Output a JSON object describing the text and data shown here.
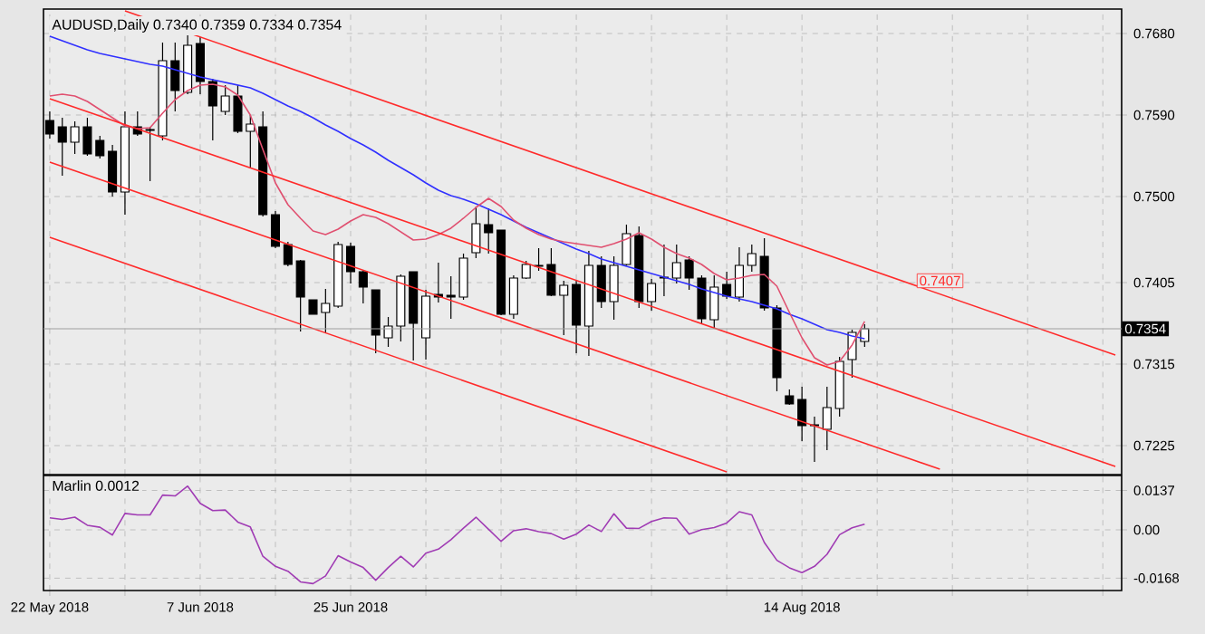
{
  "chart_data": [
    {
      "type": "candlestick",
      "title": "AUDUSD,Daily  0.7340 0.7359 0.7334 0.7354",
      "categories": [
        null,
        null,
        null,
        null,
        null,
        null,
        null,
        null,
        null,
        null,
        null,
        null,
        null,
        null,
        null,
        null,
        null,
        null,
        null,
        null,
        null,
        null,
        null,
        null,
        null,
        null,
        null,
        null,
        null,
        null,
        null,
        null,
        null,
        null,
        null,
        null,
        null,
        null,
        null,
        null,
        null,
        null,
        null,
        null,
        null,
        null,
        null,
        null,
        null,
        null,
        null,
        null,
        null,
        null,
        null,
        null,
        null,
        null,
        null,
        null,
        null,
        null,
        null,
        null,
        null,
        null,
        null,
        null,
        null,
        null,
        null,
        null,
        null,
        null,
        null,
        null,
        null,
        null,
        null,
        null,
        null,
        null,
        null,
        null,
        null,
        null
      ],
      "ohlc": [
        [
          0.7584,
          0.7594,
          0.7564,
          0.7569
        ],
        [
          0.7577,
          0.7587,
          0.7523,
          0.756
        ],
        [
          0.756,
          0.7583,
          0.7547,
          0.7577
        ],
        [
          0.7577,
          0.7587,
          0.7545,
          0.7547
        ],
        [
          0.7562,
          0.7567,
          0.7542,
          0.7545
        ],
        [
          0.755,
          0.7557,
          0.75,
          0.7505
        ],
        [
          0.7505,
          0.7594,
          0.748,
          0.7577
        ],
        [
          0.7577,
          0.7594,
          0.7567,
          0.7569
        ],
        [
          0.7573,
          0.7577,
          0.7517,
          0.7574
        ],
        [
          0.7567,
          0.767,
          0.7562,
          0.765
        ],
        [
          0.765,
          0.767,
          0.7594,
          0.7617
        ],
        [
          0.7615,
          0.768,
          0.7613,
          0.7667
        ],
        [
          0.7669,
          0.7676,
          0.7613,
          0.7627
        ],
        [
          0.7627,
          0.763,
          0.7562,
          0.76
        ],
        [
          0.7594,
          0.7623,
          0.759,
          0.7611
        ],
        [
          0.7611,
          0.7623,
          0.757,
          0.7572
        ],
        [
          0.7572,
          0.759,
          0.7532,
          0.758
        ],
        [
          0.7577,
          0.7594,
          0.7478,
          0.748
        ],
        [
          0.748,
          0.7484,
          0.7443,
          0.7445
        ],
        [
          0.7447,
          0.745,
          0.7423,
          0.7425
        ],
        [
          0.7429,
          0.743,
          0.7351,
          0.7389
        ],
        [
          0.7386,
          0.7386,
          0.737,
          0.737
        ],
        [
          0.7372,
          0.7398,
          0.735,
          0.7382
        ],
        [
          0.7379,
          0.745,
          0.7377,
          0.7447
        ],
        [
          0.7445,
          0.7449,
          0.7404,
          0.7417
        ],
        [
          0.7417,
          0.7418,
          0.7382,
          0.74
        ],
        [
          0.7397,
          0.7397,
          0.7327,
          0.7347
        ],
        [
          0.7344,
          0.7367,
          0.7334,
          0.7357
        ],
        [
          0.7357,
          0.7414,
          0.734,
          0.7412
        ],
        [
          0.7417,
          0.7417,
          0.7319,
          0.736
        ],
        [
          0.7344,
          0.7397,
          0.732,
          0.739
        ],
        [
          0.7392,
          0.7427,
          0.7383,
          0.7389
        ],
        [
          0.7391,
          0.7412,
          0.7365,
          0.7389
        ],
        [
          0.7389,
          0.7437,
          0.7386,
          0.7432
        ],
        [
          0.7438,
          0.7489,
          0.7432,
          0.747
        ],
        [
          0.7469,
          0.7487,
          0.7437,
          0.746
        ],
        [
          0.7463,
          0.7463,
          0.7369,
          0.737
        ],
        [
          0.737,
          0.7413,
          0.7365,
          0.741
        ],
        [
          0.741,
          0.7429,
          0.7409,
          0.7425
        ],
        [
          0.7424,
          0.7443,
          0.7418,
          0.7423
        ],
        [
          0.7425,
          0.7443,
          0.739,
          0.7391
        ],
        [
          0.7391,
          0.7407,
          0.7347,
          0.7402
        ],
        [
          0.7403,
          0.7407,
          0.7327,
          0.7358
        ],
        [
          0.7357,
          0.744,
          0.7324,
          0.7424
        ],
        [
          0.7424,
          0.7434,
          0.7377,
          0.7384
        ],
        [
          0.7384,
          0.7434,
          0.7364,
          0.7424
        ],
        [
          0.7425,
          0.7469,
          0.7424,
          0.7459
        ],
        [
          0.7457,
          0.7467,
          0.7377,
          0.7384
        ],
        [
          0.7384,
          0.7409,
          0.7374,
          0.7404
        ],
        [
          0.741,
          0.7447,
          0.739,
          0.7411
        ],
        [
          0.741,
          0.7447,
          0.7404,
          0.7427
        ],
        [
          0.743,
          0.7434,
          0.7397,
          0.741
        ],
        [
          0.741,
          0.7413,
          0.736,
          0.7365
        ],
        [
          0.7364,
          0.7413,
          0.7354,
          0.74
        ],
        [
          0.7403,
          0.7417,
          0.7387,
          0.739
        ],
        [
          0.7389,
          0.7444,
          0.7384,
          0.7424
        ],
        [
          0.7424,
          0.7447,
          0.7417,
          0.7437
        ],
        [
          0.7434,
          0.7454,
          0.7374,
          0.7377
        ],
        [
          0.7377,
          0.738,
          0.7285,
          0.73
        ],
        [
          0.728,
          0.7287,
          0.727,
          0.7271
        ],
        [
          0.7276,
          0.729,
          0.723,
          0.7247
        ],
        [
          0.7248,
          0.7257,
          0.7207,
          0.7247
        ],
        [
          0.7243,
          0.729,
          0.722,
          0.7267
        ],
        [
          0.7266,
          0.7323,
          0.7257,
          0.7318
        ],
        [
          0.732,
          0.7353,
          0.73,
          0.735
        ],
        [
          0.734,
          0.7359,
          0.7334,
          0.7354
        ],
        null,
        null,
        null,
        null,
        null,
        null,
        null,
        null,
        null,
        null,
        null,
        null,
        null,
        null,
        null,
        null,
        null,
        null,
        null,
        null
      ],
      "series": [
        {
          "type": "line",
          "color": "#3030ff",
          "values": [
            0.7677,
            0.7672,
            0.7667,
            0.7662,
            0.7658,
            0.7655,
            0.7652,
            0.7649,
            0.7646,
            0.7644,
            0.764,
            0.7636,
            0.7632,
            0.7629,
            0.7626,
            0.7623,
            0.762,
            0.7614,
            0.7607,
            0.76,
            0.7594,
            0.7587,
            0.7579,
            0.7572,
            0.7564,
            0.7557,
            0.7549,
            0.754,
            0.7532,
            0.7524,
            0.7515,
            0.7507,
            0.7501,
            0.7497,
            0.7492,
            0.7486,
            0.748,
            0.7473,
            0.7466,
            0.746,
            0.7454,
            0.7448,
            0.7442,
            0.7437,
            0.7431,
            0.7427,
            0.7423,
            0.7419,
            0.7415,
            0.7411,
            0.7407,
            0.7403,
            0.7398,
            0.7394,
            0.739,
            0.7387,
            0.7384,
            0.738,
            0.7376,
            0.737,
            0.7365,
            0.7359,
            0.7353,
            0.735,
            0.7346,
            0.7343,
            null,
            null,
            null,
            null,
            null,
            null,
            null,
            null,
            null,
            null,
            null,
            null,
            null,
            null,
            null,
            null,
            null,
            null,
            null,
            null
          ]
        },
        {
          "type": "line",
          "color": "#e05070",
          "values": [
            0.7611,
            0.7613,
            0.7611,
            0.7605,
            0.7596,
            0.7587,
            0.7578,
            0.7575,
            0.7576,
            0.7592,
            0.7607,
            0.7617,
            0.7623,
            0.7624,
            0.7621,
            0.7612,
            0.759,
            0.7552,
            0.7515,
            0.7491,
            0.7476,
            0.7462,
            0.7458,
            0.7464,
            0.7473,
            0.748,
            0.7477,
            0.747,
            0.7461,
            0.7452,
            0.7453,
            0.7458,
            0.7465,
            0.7476,
            0.7488,
            0.7498,
            0.7489,
            0.7474,
            0.7465,
            0.7458,
            0.7453,
            0.745,
            0.7448,
            0.7446,
            0.7444,
            0.7448,
            0.7453,
            0.746,
            0.7453,
            0.7444,
            0.7437,
            0.7432,
            0.7425,
            0.7415,
            0.7408,
            0.741,
            0.7413,
            0.7414,
            0.7401,
            0.7372,
            0.7344,
            0.7322,
            0.7314,
            0.7318,
            0.7336,
            0.7362,
            null,
            null,
            null,
            null,
            null,
            null,
            null,
            null,
            null,
            null,
            null,
            null,
            null,
            null,
            null,
            null,
            null,
            null,
            null,
            null
          ]
        },
        {
          "type": "line",
          "color": "#ff2a2a",
          "values": [
            null,
            null,
            null,
            null,
            null,
            null,
            0.7705,
            null,
            null,
            null,
            null,
            null,
            null,
            null,
            null,
            null,
            null,
            null,
            null,
            null,
            null,
            null,
            null,
            null,
            null,
            null,
            null,
            null,
            null,
            null,
            null,
            null,
            null,
            null,
            null,
            null,
            null,
            null,
            null,
            null,
            null,
            null,
            null,
            null,
            null,
            null,
            null,
            null,
            null,
            null,
            null,
            null,
            null,
            null,
            null,
            null,
            null,
            null,
            null,
            null,
            null,
            null,
            null,
            null,
            null,
            null,
            null,
            null,
            null,
            null,
            null,
            null,
            null,
            null,
            null,
            null,
            null,
            null,
            null,
            null,
            null,
            null,
            null,
            null,
            null,
            0.7325
          ]
        },
        {
          "type": "line",
          "color": "#ff2a2a",
          "values": [
            0.7608,
            null,
            null,
            null,
            null,
            null,
            null,
            null,
            null,
            null,
            null,
            null,
            null,
            null,
            null,
            null,
            null,
            null,
            null,
            null,
            null,
            null,
            null,
            null,
            null,
            null,
            null,
            null,
            null,
            null,
            null,
            null,
            null,
            null,
            null,
            null,
            null,
            null,
            null,
            null,
            null,
            null,
            null,
            null,
            null,
            null,
            null,
            null,
            null,
            null,
            null,
            null,
            null,
            null,
            null,
            null,
            null,
            null,
            null,
            null,
            null,
            null,
            null,
            null,
            null,
            null,
            null,
            null,
            null,
            null,
            null,
            null,
            null,
            null,
            null,
            null,
            null,
            null,
            null,
            null,
            null,
            null,
            null,
            null,
            null,
            0.7202
          ]
        },
        {
          "type": "line",
          "color": "#ff2a2a",
          "values": [
            0.7538,
            null,
            null,
            null,
            null,
            null,
            null,
            null,
            null,
            null,
            null,
            null,
            null,
            null,
            null,
            null,
            null,
            null,
            null,
            null,
            null,
            null,
            null,
            null,
            null,
            null,
            null,
            null,
            null,
            null,
            null,
            null,
            null,
            null,
            null,
            null,
            null,
            null,
            null,
            null,
            null,
            null,
            null,
            null,
            null,
            null,
            null,
            null,
            null,
            null,
            null,
            null,
            null,
            null,
            null,
            null,
            null,
            null,
            null,
            null,
            null,
            null,
            null,
            null,
            null,
            null,
            null,
            null,
            null,
            null,
            null,
            0.7199,
            null,
            null,
            null,
            null,
            null,
            null,
            null,
            null,
            null,
            null,
            null,
            null,
            null,
            null
          ]
        },
        {
          "type": "line",
          "color": "#ff2a2a",
          "values": [
            0.7455,
            null,
            null,
            null,
            null,
            null,
            null,
            null,
            null,
            null,
            null,
            null,
            null,
            null,
            null,
            null,
            null,
            null,
            null,
            null,
            null,
            null,
            null,
            null,
            null,
            null,
            null,
            null,
            null,
            null,
            null,
            null,
            null,
            null,
            null,
            null,
            null,
            null,
            null,
            null,
            null,
            null,
            null,
            null,
            null,
            null,
            null,
            null,
            null,
            null,
            null,
            null,
            null,
            null,
            0.7196,
            null,
            null,
            null,
            null,
            null,
            null,
            null,
            null,
            null,
            null,
            null,
            null,
            null,
            null,
            null,
            null,
            null,
            null,
            null,
            null,
            null,
            null,
            null,
            null,
            null,
            null,
            null,
            null,
            null,
            null,
            null
          ]
        }
      ],
      "ylim": [
        0.7193,
        0.7707
      ],
      "yticks": [
        {
          "value": 0.768,
          "label": "0.7680"
        },
        {
          "value": 0.759,
          "label": "0.7590"
        },
        {
          "value": 0.75,
          "label": "0.7500"
        },
        0.7405,
        0.7315,
        0.7225
      ],
      "grid": true,
      "tick_labels": "y",
      "ref_lines": [
        {
          "axis": "y",
          "value": 0.7354,
          "label": "0.7354",
          "color": "#a0a0a0"
        }
      ],
      "annotations": [
        {
          "text": "0.7407",
          "y": 0.7407
        }
      ]
    },
    {
      "type": "line",
      "title": "Marlin 0.0012",
      "categories": [
        "22 May 2018",
        null,
        null,
        null,
        null,
        null,
        null,
        null,
        null,
        null,
        null,
        null,
        "7 Jun 2018",
        null,
        null,
        null,
        null,
        null,
        null,
        null,
        null,
        null,
        null,
        null,
        "25 Jun 2018",
        null,
        null,
        null,
        null,
        null,
        null,
        null,
        null,
        null,
        null,
        null,
        null,
        null,
        null,
        null,
        null,
        null,
        null,
        null,
        null,
        null,
        null,
        null,
        null,
        null,
        null,
        null,
        null,
        null,
        null,
        null,
        null,
        null,
        null,
        null,
        "14 Aug 2018",
        null,
        null,
        null,
        null,
        null,
        null,
        null,
        null,
        null,
        null,
        null,
        null,
        null,
        null,
        null,
        null,
        null,
        null,
        null,
        null,
        null,
        null,
        null,
        null,
        null
      ],
      "series": [
        {
          "color": "#a03cb4",
          "values": [
            0.0042,
            0.0036,
            0.0044,
            0.0016,
            0.0009,
            -0.0018,
            0.0057,
            0.0052,
            0.0052,
            0.0121,
            0.0118,
            0.0152,
            0.0092,
            0.0067,
            0.0069,
            0.0027,
            0.001,
            -0.0092,
            -0.0127,
            -0.0144,
            -0.0181,
            -0.0187,
            -0.016,
            -0.009,
            -0.0112,
            -0.0131,
            -0.0175,
            -0.0131,
            -0.0092,
            -0.0129,
            -0.0081,
            -0.0067,
            -0.0034,
            0.0006,
            0.0044,
            0.0002,
            -0.004,
            -0.0003,
            0.0004,
            -0.0006,
            -0.0013,
            -0.0032,
            -0.0015,
            0.0017,
            -0.0006,
            0.0056,
            0.0006,
            0.0005,
            0.0029,
            0.0042,
            0.004,
            -0.0015,
            0.0001,
            0.0008,
            0.0024,
            0.0063,
            0.0052,
            -0.0044,
            -0.0106,
            -0.0132,
            -0.0149,
            -0.0127,
            -0.0085,
            -0.0017,
            0.0007,
            0.002,
            null,
            null,
            null,
            null,
            null,
            null,
            null,
            null,
            null,
            null,
            null,
            null,
            null,
            null,
            null,
            null,
            null,
            null,
            null,
            null
          ]
        }
      ],
      "ylim": [
        -0.0211,
        0.0189
      ],
      "yticks": [
        0.0137,
        {
          "value": 0,
          "label": "0.00"
        },
        -0.0168
      ],
      "grid": true
    }
  ]
}
